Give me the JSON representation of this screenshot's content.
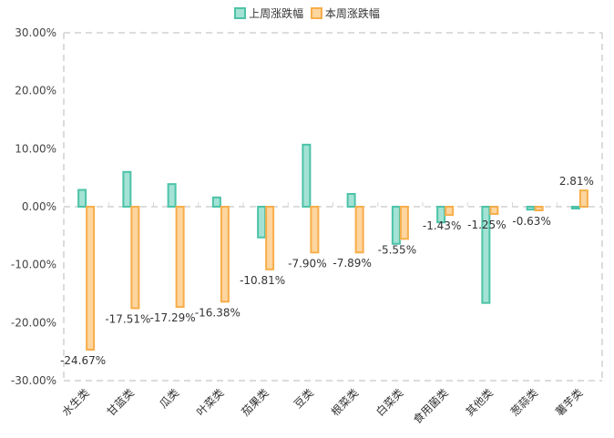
{
  "chart_data": {
    "type": "bar",
    "title": "",
    "xlabel": "",
    "ylabel": "",
    "categories": [
      "水生类",
      "甘蓝类",
      "瓜类",
      "叶菜类",
      "茄果类",
      "豆类",
      "根菜类",
      "白菜类",
      "食用菌类",
      "其他类",
      "葱蒜类",
      "薯芋类"
    ],
    "series": [
      {
        "name": "上周涨跌幅",
        "color": "#4CC3A8",
        "fill": "#A3E2D4",
        "values": [
          2.9,
          6.0,
          3.9,
          1.6,
          -5.3,
          10.7,
          2.2,
          -6.4,
          -2.7,
          -16.6,
          -0.5,
          -0.3
        ],
        "labels": []
      },
      {
        "name": "本周涨跌幅",
        "color": "#F7AE4A",
        "fill": "#FDD59F",
        "values": [
          -24.67,
          -17.51,
          -17.29,
          -16.38,
          -10.81,
          -7.9,
          -7.89,
          -5.55,
          -1.43,
          -1.25,
          -0.63,
          2.81
        ],
        "labels": [
          "-24.67%",
          "-17.51%",
          "-17.29%",
          "-16.38%",
          "-10.81%",
          "-7.90%",
          "-7.89%",
          "-5.55%",
          "-1.43%",
          "-1.25%",
          "-0.63%",
          "2.81%"
        ]
      }
    ],
    "ylim": [
      -30,
      30
    ],
    "yticks": [
      30,
      20,
      10,
      0,
      -10,
      -20,
      -30
    ],
    "ytick_labels": [
      "30.00%",
      "20.00%",
      "10.00%",
      "0.00%",
      "-10.00%",
      "-20.00%",
      "-30.00%"
    ],
    "grid": "dashed zero line and dashed frame",
    "legend_position": "top-center"
  }
}
